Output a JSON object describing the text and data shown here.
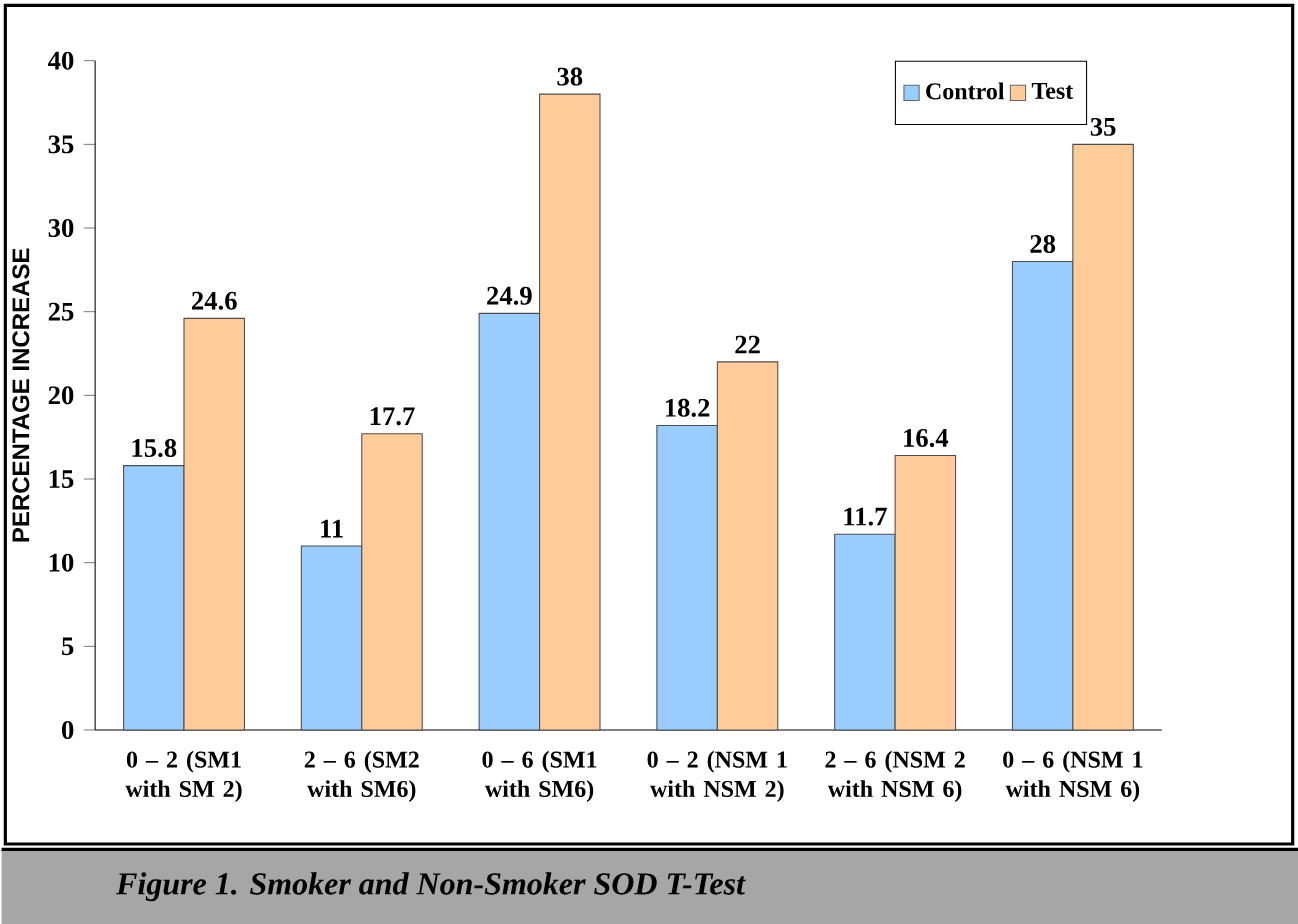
{
  "chart_data": {
    "type": "bar",
    "categories": [
      "0 – 2 (SM1 with SM 2)",
      "2 – 6 (SM2 with SM6)",
      "0 – 6 (SM1 with SM6)",
      "0 – 2 (NSM 1 with NSM 2)",
      "2 – 6 (NSM 2 with NSM 6)",
      "0 – 6 (NSM 1 with NSM 6)"
    ],
    "series": [
      {
        "name": "Control",
        "color": "#99ccff",
        "values": [
          15.8,
          11,
          24.9,
          18.2,
          11.7,
          28
        ]
      },
      {
        "name": "Test",
        "color": "#ffcc99",
        "values": [
          24.6,
          17.7,
          38,
          22,
          16.4,
          35
        ]
      }
    ],
    "ylabel": "PERCENTAGE  INCREASE",
    "ylim": [
      0,
      40
    ],
    "yticks": [
      0,
      5,
      10,
      15,
      20,
      25,
      30,
      35,
      40
    ],
    "legend": "top right",
    "data_labels": true,
    "grid": false,
    "annotations": [
      "Figure 1. Smoker and Non-Smoker SOD T-Test"
    ]
  }
}
